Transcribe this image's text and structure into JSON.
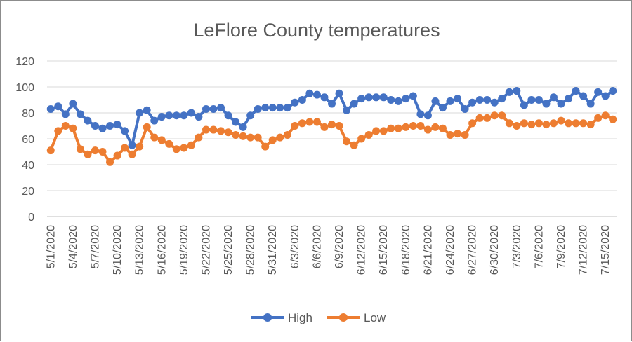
{
  "chart_data": {
    "type": "line",
    "title": "LeFlore County temperatures",
    "xlabel": "",
    "ylabel": "",
    "ylim": [
      0,
      120
    ],
    "yticks": [
      0,
      20,
      40,
      60,
      80,
      100,
      120
    ],
    "grid": true,
    "legend_position": "bottom",
    "x_tick_labels": [
      "5/1/2020",
      "5/4/2020",
      "5/7/2020",
      "5/10/2020",
      "5/13/2020",
      "5/16/2020",
      "5/19/2020",
      "5/22/2020",
      "5/25/2020",
      "5/28/2020",
      "5/31/2020",
      "6/3/2020",
      "6/6/2020",
      "6/9/2020",
      "6/12/2020",
      "6/15/2020",
      "6/18/2020",
      "6/21/2020",
      "6/24/2020",
      "6/27/2020",
      "6/30/2020",
      "7/3/2020",
      "7/6/2020",
      "7/9/2020",
      "7/12/2020",
      "7/15/2020"
    ],
    "x": [
      "5/1/2020",
      "5/2/2020",
      "5/3/2020",
      "5/4/2020",
      "5/5/2020",
      "5/6/2020",
      "5/7/2020",
      "5/8/2020",
      "5/9/2020",
      "5/10/2020",
      "5/11/2020",
      "5/12/2020",
      "5/13/2020",
      "5/14/2020",
      "5/15/2020",
      "5/16/2020",
      "5/17/2020",
      "5/18/2020",
      "5/19/2020",
      "5/20/2020",
      "5/21/2020",
      "5/22/2020",
      "5/23/2020",
      "5/24/2020",
      "5/25/2020",
      "5/26/2020",
      "5/27/2020",
      "5/28/2020",
      "5/29/2020",
      "5/30/2020",
      "5/31/2020",
      "6/1/2020",
      "6/2/2020",
      "6/3/2020",
      "6/4/2020",
      "6/5/2020",
      "6/6/2020",
      "6/7/2020",
      "6/8/2020",
      "6/9/2020",
      "6/10/2020",
      "6/11/2020",
      "6/12/2020",
      "6/13/2020",
      "6/14/2020",
      "6/15/2020",
      "6/16/2020",
      "6/17/2020",
      "6/18/2020",
      "6/19/2020",
      "6/20/2020",
      "6/21/2020",
      "6/22/2020",
      "6/23/2020",
      "6/24/2020",
      "6/25/2020",
      "6/26/2020",
      "6/27/2020",
      "6/28/2020",
      "6/29/2020",
      "6/30/2020",
      "7/1/2020",
      "7/2/2020",
      "7/3/2020",
      "7/4/2020",
      "7/5/2020",
      "7/6/2020",
      "7/7/2020",
      "7/8/2020",
      "7/9/2020",
      "7/10/2020",
      "7/11/2020",
      "7/12/2020",
      "7/13/2020",
      "7/14/2020",
      "7/15/2020",
      "7/16/2020"
    ],
    "series": [
      {
        "name": "High",
        "color": "#4472c4",
        "values": [
          83,
          85,
          79,
          87,
          79,
          74,
          70,
          68,
          70,
          71,
          66,
          55,
          80,
          82,
          74,
          77,
          78,
          78,
          78,
          80,
          77,
          83,
          83,
          84,
          78,
          73,
          69,
          78,
          83,
          84,
          84,
          84,
          84,
          88,
          90,
          95,
          94,
          92,
          87,
          95,
          82,
          87,
          91,
          92,
          92,
          92,
          90,
          89,
          91,
          93,
          79,
          78,
          89,
          84,
          89,
          91,
          83,
          88,
          90,
          90,
          88,
          91,
          96,
          97,
          86,
          90,
          90,
          87,
          92,
          87,
          91,
          97,
          93,
          87,
          96,
          93,
          97
        ]
      },
      {
        "name": "Low",
        "color": "#ed7d31",
        "values": [
          51,
          66,
          70,
          68,
          52,
          48,
          51,
          50,
          42,
          47,
          53,
          48,
          54,
          69,
          61,
          59,
          56,
          52,
          53,
          55,
          61,
          67,
          67,
          66,
          65,
          63,
          62,
          61,
          61,
          54,
          59,
          61,
          63,
          70,
          72,
          73,
          73,
          69,
          71,
          70,
          58,
          55,
          60,
          63,
          66,
          66,
          68,
          68,
          69,
          70,
          70,
          67,
          69,
          68,
          63,
          64,
          63,
          72,
          76,
          76,
          78,
          78,
          72,
          70,
          72,
          71,
          72,
          71,
          72,
          74,
          72,
          72,
          72,
          71,
          76,
          78,
          75
        ]
      }
    ]
  }
}
